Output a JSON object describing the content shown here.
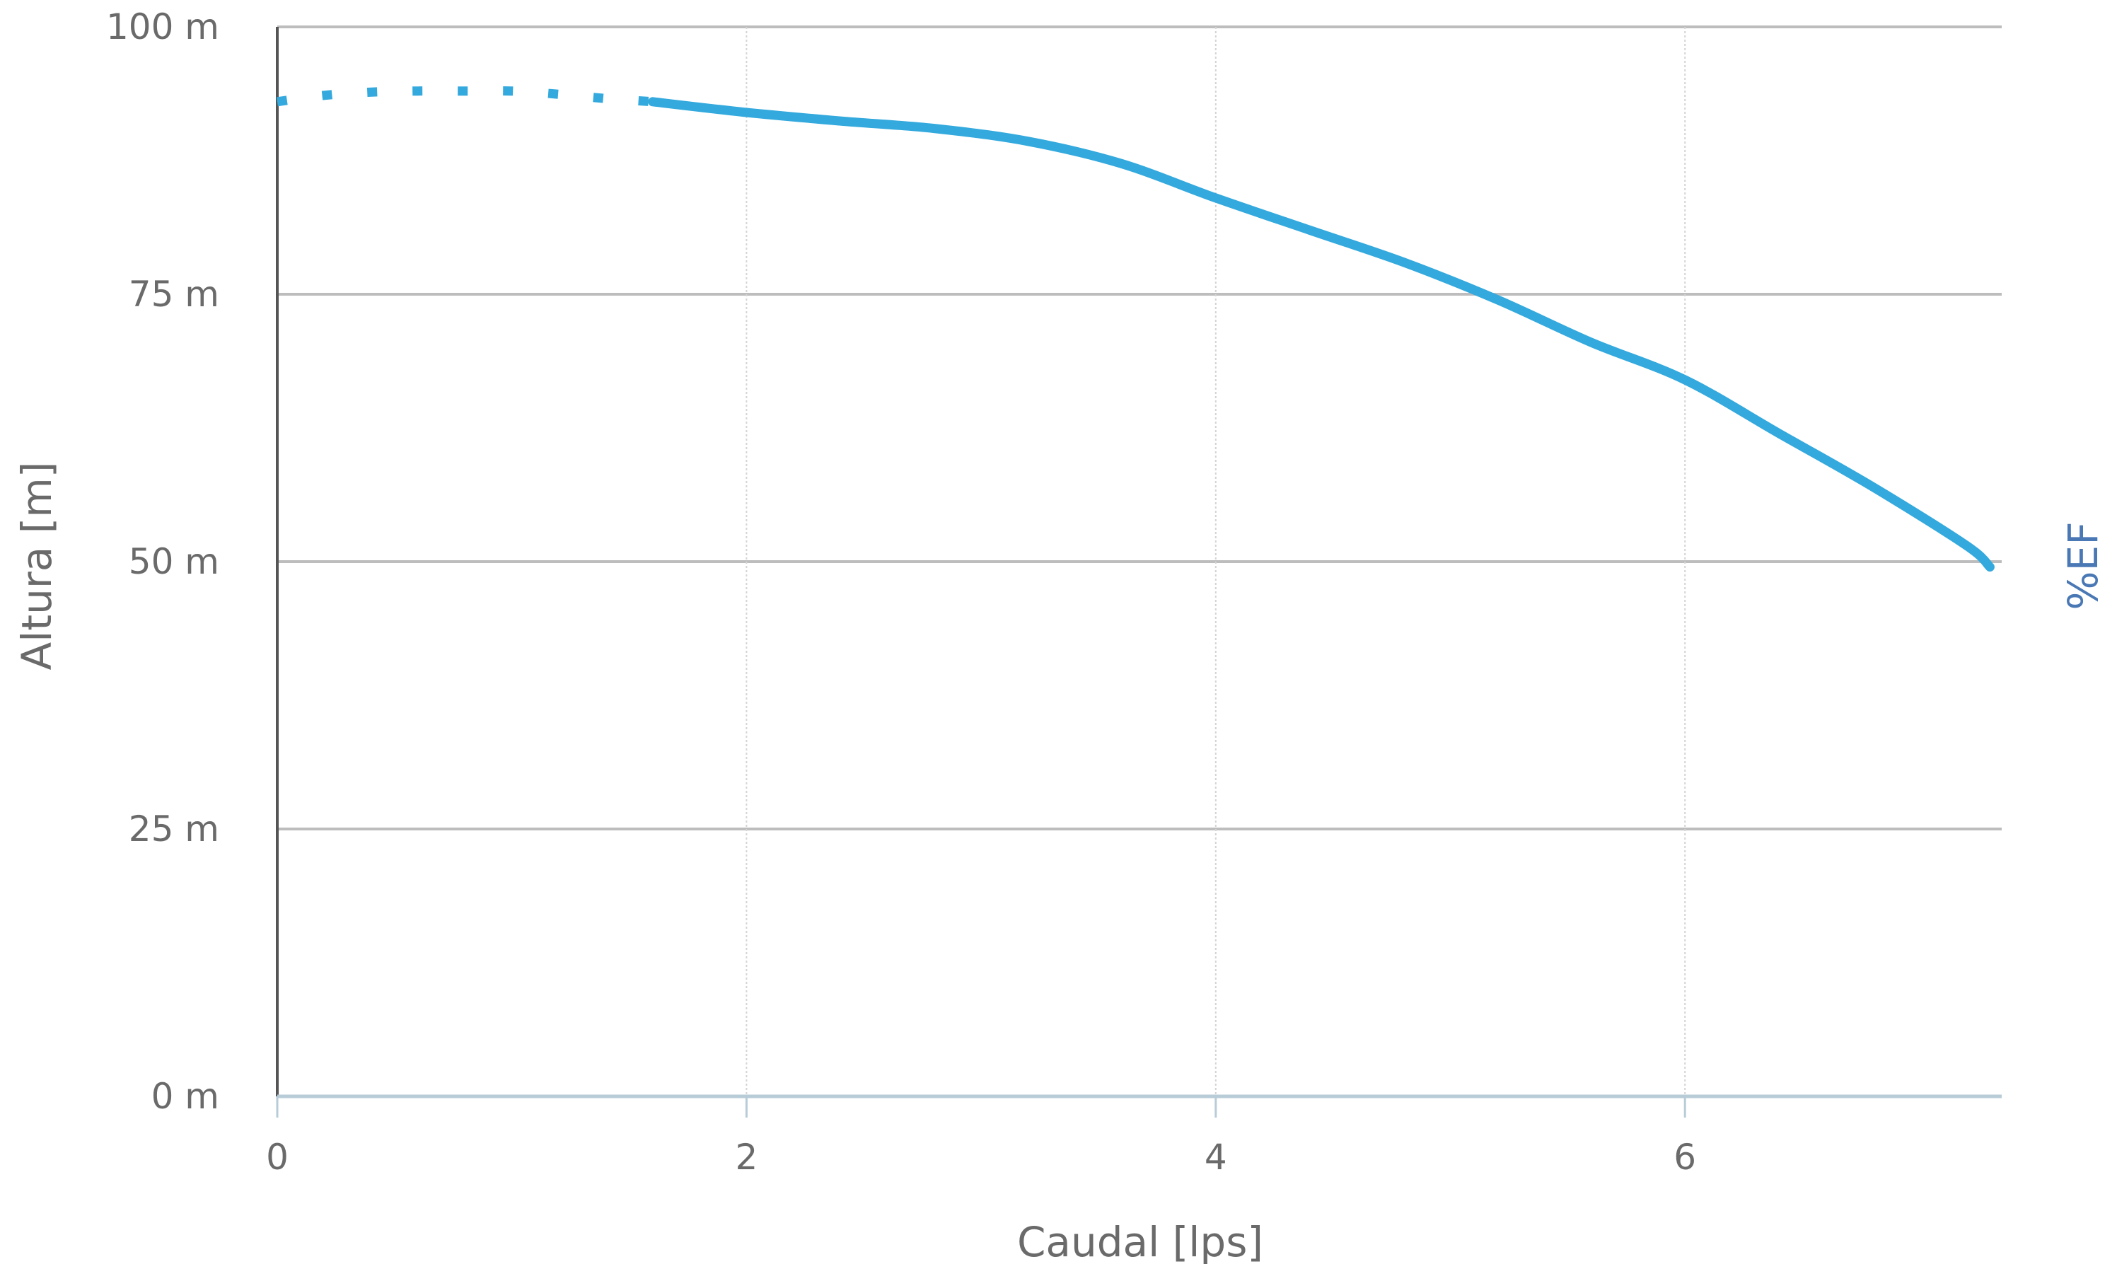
{
  "chart_data": {
    "type": "line",
    "xlabel": "Caudal [lps]",
    "ylabel": "Altura [m]",
    "y2label": "%EF",
    "xlim": [
      0,
      7.35
    ],
    "ylim": [
      0,
      100
    ],
    "x_ticks": [
      {
        "value": 0,
        "label": "0"
      },
      {
        "value": 2,
        "label": "2"
      },
      {
        "value": 4,
        "label": "4"
      },
      {
        "value": 6,
        "label": "6"
      }
    ],
    "y_ticks": [
      {
        "value": 0,
        "label": "0 m"
      },
      {
        "value": 25,
        "label": "25 m"
      },
      {
        "value": 50,
        "label": "50 m"
      },
      {
        "value": 75,
        "label": "75 m"
      },
      {
        "value": 100,
        "label": "100 m"
      }
    ],
    "grid": true,
    "series": [
      {
        "dashed_until_x": 1.6,
        "color": "#33a9dd",
        "points": [
          [
            0,
            93.0
          ],
          [
            0.2,
            93.6
          ],
          [
            0.4,
            93.9
          ],
          [
            0.6,
            94.0
          ],
          [
            0.8,
            94.0
          ],
          [
            1.0,
            94.0
          ],
          [
            1.2,
            93.7
          ],
          [
            1.4,
            93.3
          ],
          [
            1.6,
            93.0
          ],
          [
            2.0,
            92.0
          ],
          [
            2.4,
            91.2
          ],
          [
            2.8,
            90.5
          ],
          [
            3.2,
            89.3
          ],
          [
            3.6,
            87.2
          ],
          [
            4.0,
            84.0
          ],
          [
            4.4,
            81.0
          ],
          [
            4.8,
            78.0
          ],
          [
            5.2,
            74.5
          ],
          [
            5.6,
            70.5
          ],
          [
            6.0,
            67.0
          ],
          [
            6.4,
            62.0
          ],
          [
            6.8,
            57.0
          ],
          [
            7.2,
            51.5
          ],
          [
            7.3,
            49.5
          ]
        ]
      }
    ]
  },
  "colors": {
    "grid_major": "#bdbdbd",
    "grid_minor": "#d4d4d4",
    "axis": "#555555",
    "x_axis": "#b8ccd8",
    "curve": "#33a9dd",
    "text": "#6a6a6a",
    "y2_text": "#4a78b5"
  }
}
